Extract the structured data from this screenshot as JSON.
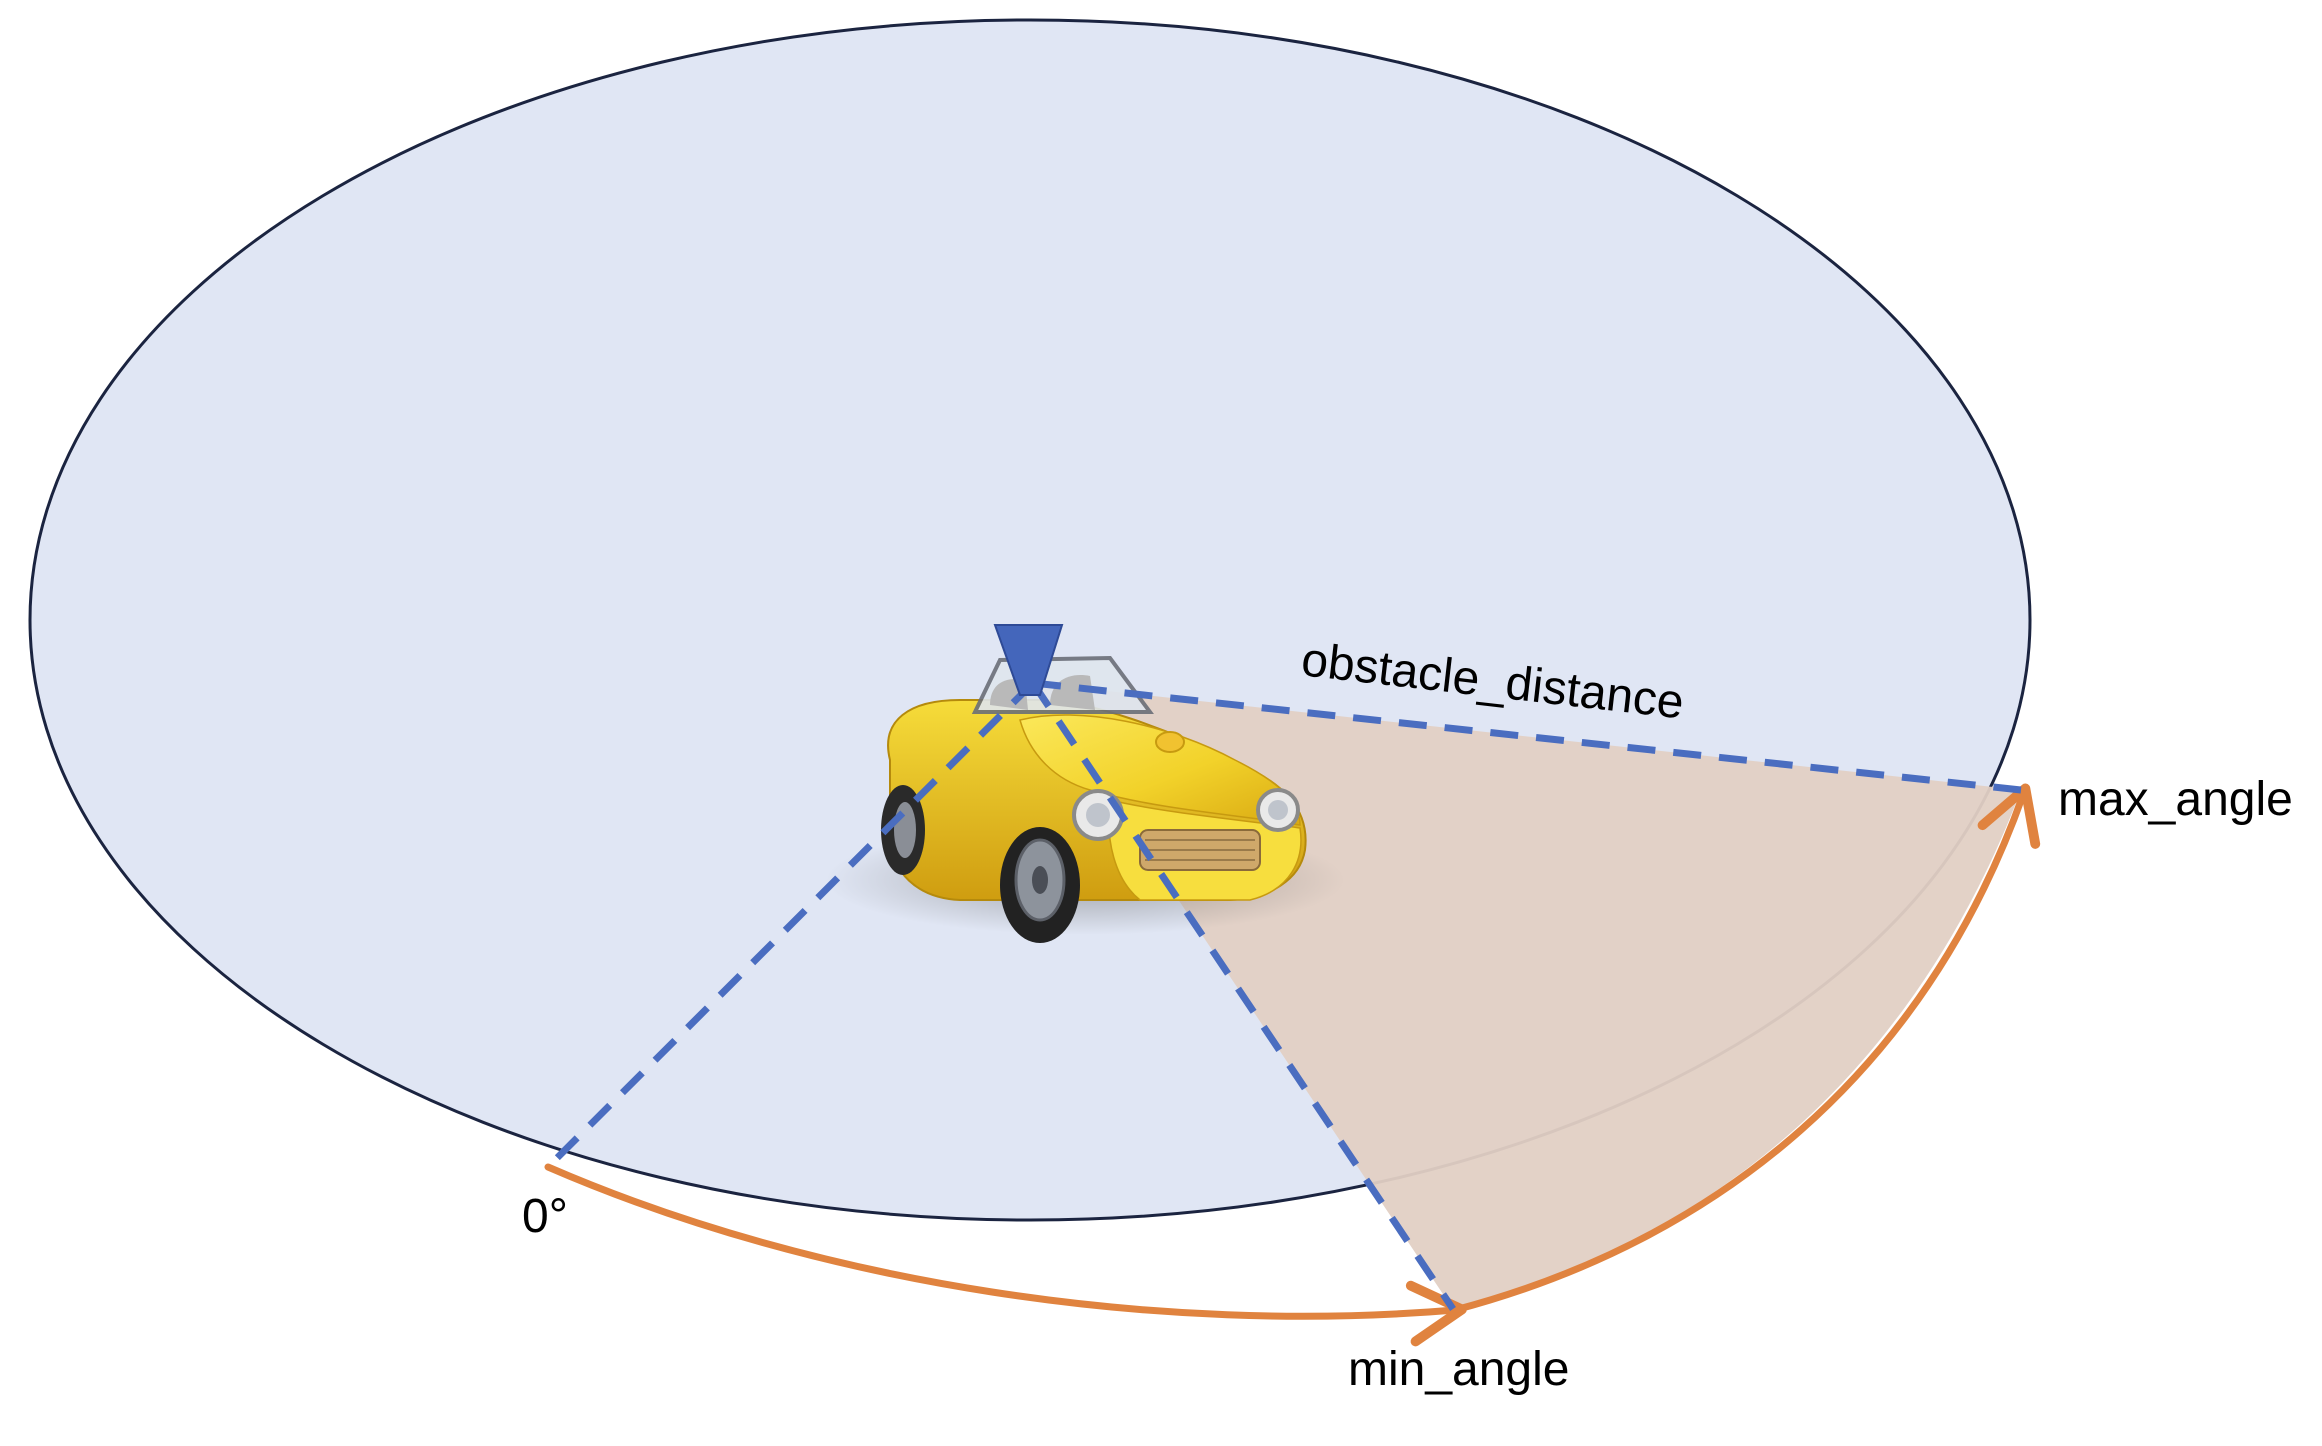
{
  "labels": {
    "obstacle_distance": "obstacle_distance",
    "max_angle": "max_angle",
    "min_angle": "min_angle",
    "zero": "0°"
  },
  "colors": {
    "ellipse_fill": "#e0e6f4",
    "ellipse_stroke": "#1b2440",
    "sector_fill": "#e2d0c4",
    "ray": "#4a6dc0",
    "arc": "#e0833f",
    "sensor": "#4466bb",
    "car_body": "#f2d22a"
  },
  "icons": {
    "car": "yellow-convertible-car",
    "sensor": "lidar-sensor"
  }
}
